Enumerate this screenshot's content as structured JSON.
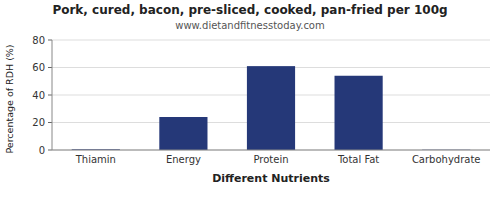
{
  "chart_data": {
    "type": "bar",
    "title": "Pork, cured, bacon, pre-sliced, cooked, pan-fried per 100g",
    "subtitle": "www.dietandfitnesstoday.com",
    "xlabel": "Different Nutrients",
    "ylabel": "Percentage of RDH (%)",
    "categories": [
      "Thiamin",
      "Energy",
      "Protein",
      "Total Fat",
      "Carbohydrate"
    ],
    "values": [
      0.5,
      24,
      61,
      54,
      0.2
    ],
    "color": "#253878",
    "ylim": [
      0,
      80
    ],
    "yticks": [
      0,
      20,
      40,
      60,
      80
    ],
    "grid": true
  }
}
